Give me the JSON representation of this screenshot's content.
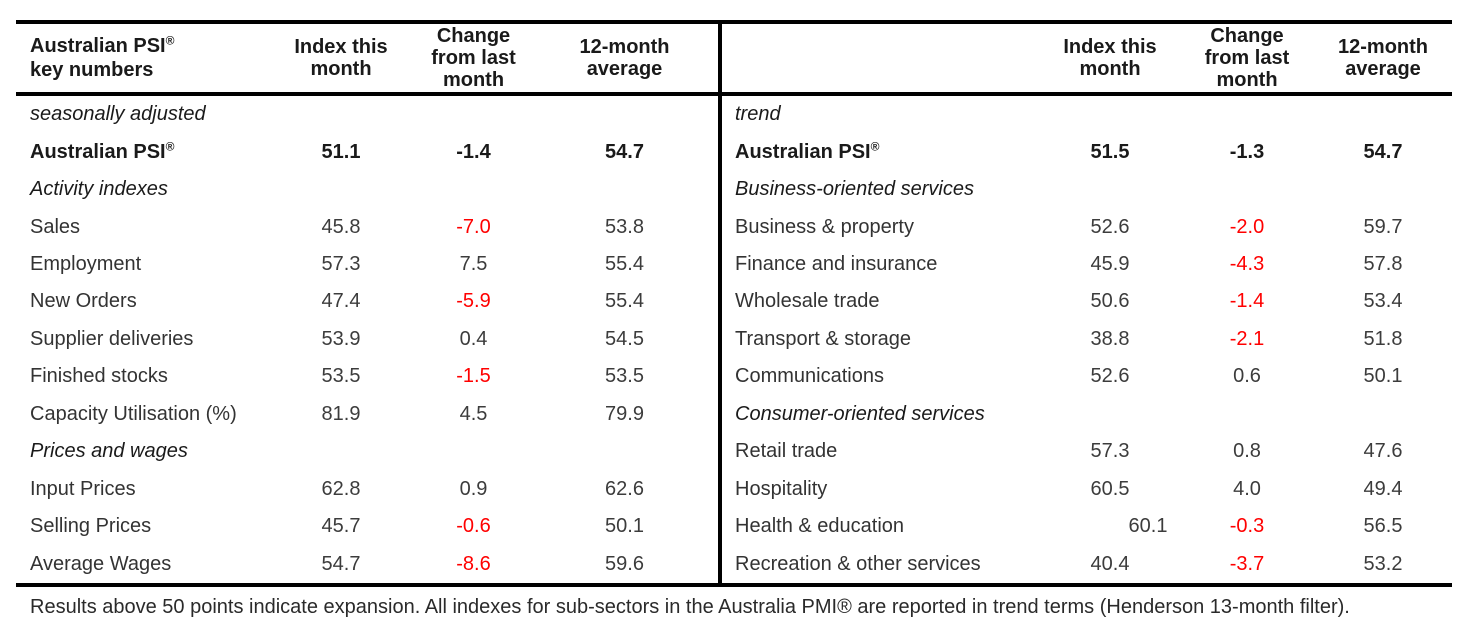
{
  "colors": {
    "negative_value": "#ff0000",
    "header_text": "#1a1a1a",
    "data_text": "#3c3c3c",
    "rule_lines": "#000000"
  },
  "left_table": {
    "header": {
      "title_line1": "Australian PSI",
      "title_reg": "®",
      "title_line2": "key numbers",
      "col_index": "Index this month",
      "col_change": "Change from last month",
      "col_avg": "12-month average"
    },
    "rows": [
      {
        "type": "section",
        "label": "seasonally adjusted"
      },
      {
        "type": "total",
        "label": "Australian PSI",
        "reg": "®",
        "index": "51.1",
        "change": "-1.4",
        "avg": "54.7"
      },
      {
        "type": "section",
        "label": "Activity indexes"
      },
      {
        "type": "data",
        "label": "Sales",
        "index": "45.8",
        "change": "-7.0",
        "avg": "53.8"
      },
      {
        "type": "data",
        "label": "Employment",
        "index": "57.3",
        "change": "7.5",
        "avg": "55.4"
      },
      {
        "type": "data",
        "label": "New Orders",
        "index": "47.4",
        "change": "-5.9",
        "avg": "55.4"
      },
      {
        "type": "data",
        "label": "Supplier deliveries",
        "index": "53.9",
        "change": "0.4",
        "avg": "54.5"
      },
      {
        "type": "data",
        "label": "Finished stocks",
        "index": "53.5",
        "change": "-1.5",
        "avg": "53.5"
      },
      {
        "type": "data",
        "label": "Capacity Utilisation (%)",
        "index": "81.9",
        "change": "4.5",
        "avg": "79.9"
      },
      {
        "type": "section",
        "label": "Prices and wages"
      },
      {
        "type": "data",
        "label": "Input Prices",
        "index": "62.8",
        "change": "0.9",
        "avg": "62.6"
      },
      {
        "type": "data",
        "label": "Selling Prices",
        "index": "45.7",
        "change": "-0.6",
        "avg": "50.1"
      },
      {
        "type": "data",
        "label": "Average Wages",
        "index": "54.7",
        "change": "-8.6",
        "avg": "59.6"
      }
    ]
  },
  "right_table": {
    "header": {
      "col_index": "Index this month",
      "col_change": "Change from last month",
      "col_avg": "12-month average"
    },
    "rows": [
      {
        "type": "section",
        "label": "trend"
      },
      {
        "type": "total",
        "label": "Australian PSI",
        "reg": "®",
        "index": "51.5",
        "change": "-1.3",
        "avg": "54.7"
      },
      {
        "type": "section",
        "label": "Business-oriented services"
      },
      {
        "type": "data",
        "label": "Business & property",
        "index": "52.6",
        "change": "-2.0",
        "avg": "59.7"
      },
      {
        "type": "data",
        "label": "Finance and insurance",
        "index": "45.9",
        "change": "-4.3",
        "avg": "57.8"
      },
      {
        "type": "data",
        "label": "Wholesale trade",
        "index": "50.6",
        "change": "-1.4",
        "avg": "53.4"
      },
      {
        "type": "data",
        "label": "Transport & storage",
        "index": "38.8",
        "change": "-2.1",
        "avg": "51.8"
      },
      {
        "type": "data",
        "label": "Communications",
        "index": "52.6",
        "change": "0.6",
        "avg": "50.1"
      },
      {
        "type": "section",
        "label": "Consumer-oriented services"
      },
      {
        "type": "data",
        "label": "Retail trade",
        "index": "57.3",
        "change": "0.8",
        "avg": "47.6"
      },
      {
        "type": "data",
        "label": "Hospitality",
        "index": "60.5",
        "change": "4.0",
        "avg": "49.4"
      },
      {
        "type": "data",
        "label": "Health & education",
        "index": "60.1",
        "change": "-0.3",
        "avg": "56.5"
      },
      {
        "type": "data",
        "label": "Recreation & other services",
        "index": "40.4",
        "change": "-3.7",
        "avg": "53.2"
      }
    ]
  },
  "footnote": "Results above 50 points indicate expansion. All indexes for sub-sectors in the Australia PMI® are reported in trend terms (Henderson 13-month filter)."
}
